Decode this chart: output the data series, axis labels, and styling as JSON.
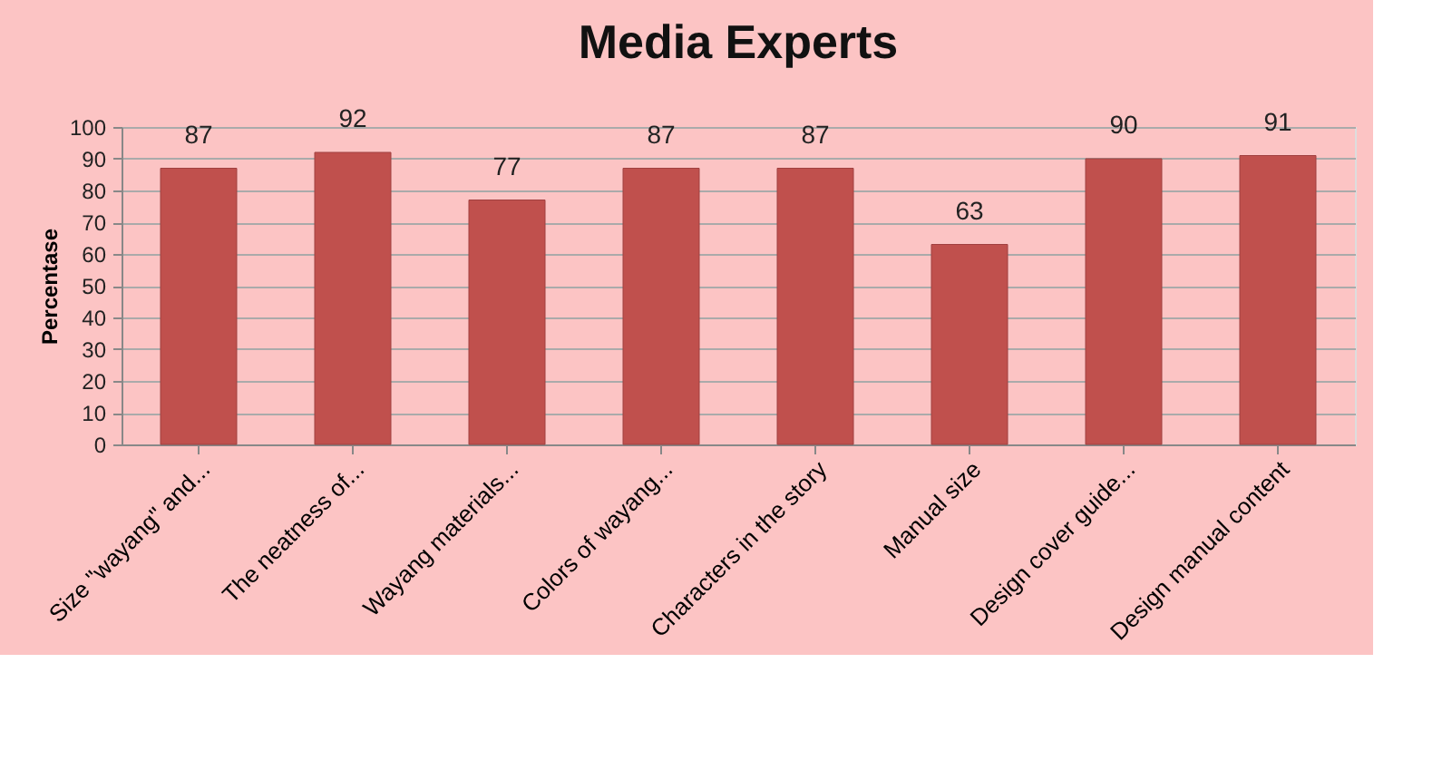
{
  "chart_data": {
    "type": "bar",
    "title": "Media Experts",
    "ylabel": "Percentase",
    "categories": [
      "Size \"wayang\" and...",
      "The neatness of...",
      "Wayang materials...",
      "Colors of wayang...",
      "Characters in the story",
      "Manual size",
      "Design cover guide...",
      "Design manual content"
    ],
    "values": [
      87,
      92,
      77,
      87,
      87,
      63,
      90,
      91
    ],
    "color": "#c0504d",
    "ylim": [
      0,
      100
    ],
    "yticks": [
      0,
      10,
      20,
      30,
      40,
      50,
      60,
      70,
      80,
      90,
      100
    ],
    "grid": "y",
    "data_labels": true
  }
}
